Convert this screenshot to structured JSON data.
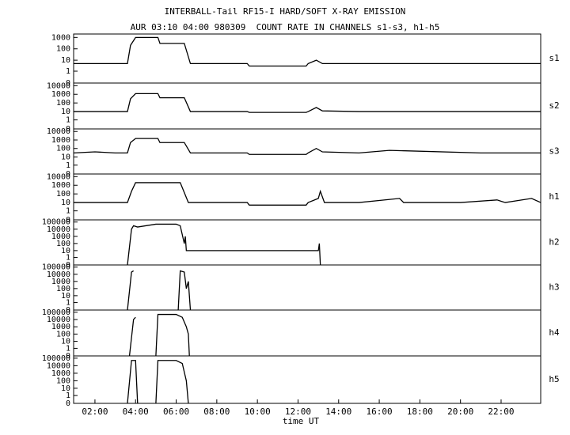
{
  "title": "INTERBALL-Tail RF15-I HARD/SOFT X-RAY EMISSION",
  "subtitle": "AUR 03:10 04:00 980309  COUNT RATE IN CHANNELS s1-s3, h1-h5",
  "xlabel": "time UT",
  "chart_data": [
    {
      "type": "line",
      "ylabel": "s1",
      "color": "#000000",
      "xlim": [
        0.95,
        23.95
      ],
      "ylim": [
        0,
        2000
      ],
      "yticks": [
        1000,
        100,
        10,
        1,
        0
      ],
      "x": [
        0.95,
        2,
        3,
        3.6,
        3.75,
        4.0,
        5.1,
        5.2,
        6.4,
        6.7,
        8,
        9.5,
        9.6,
        12.4,
        12.5,
        12.9,
        13.2,
        15,
        18,
        21,
        23.95
      ],
      "values": [
        5,
        5,
        5,
        5,
        200,
        1000,
        1000,
        300,
        300,
        5,
        5,
        5,
        3,
        3,
        5,
        10,
        5,
        5,
        5,
        5,
        5
      ]
    },
    {
      "type": "line",
      "ylabel": "s2",
      "color": "#000000",
      "xlim": [
        0.95,
        23.95
      ],
      "ylim": [
        0,
        20000
      ],
      "yticks": [
        10000,
        1000,
        100,
        10,
        1,
        0
      ],
      "x": [
        0.95,
        2,
        3,
        3.6,
        3.75,
        4.0,
        5.1,
        5.2,
        6.4,
        6.7,
        8,
        9.5,
        9.6,
        12.4,
        12.5,
        12.9,
        13.2,
        15,
        18,
        21,
        23.95
      ],
      "values": [
        10,
        10,
        10,
        10,
        300,
        1200,
        1200,
        400,
        400,
        10,
        10,
        10,
        8,
        8,
        10,
        30,
        12,
        10,
        10,
        10,
        10
      ]
    },
    {
      "type": "line",
      "ylabel": "s3",
      "color": "#000000",
      "xlim": [
        0.95,
        23.95
      ],
      "ylim": [
        0,
        20000
      ],
      "yticks": [
        10000,
        1000,
        100,
        10,
        1,
        0
      ],
      "x": [
        0.95,
        2,
        3,
        3.6,
        3.75,
        4.0,
        5.1,
        5.2,
        6.4,
        6.7,
        8,
        9.5,
        9.6,
        12.4,
        12.5,
        12.9,
        13.2,
        15,
        16.5,
        21,
        23.95
      ],
      "values": [
        30,
        40,
        30,
        30,
        500,
        1500,
        1500,
        500,
        500,
        30,
        30,
        30,
        20,
        20,
        30,
        100,
        40,
        30,
        60,
        30,
        30
      ]
    },
    {
      "type": "line",
      "ylabel": "h1",
      "color": "#000000",
      "xlim": [
        0.95,
        23.95
      ],
      "ylim": [
        0,
        20000
      ],
      "yticks": [
        10000,
        1000,
        100,
        10,
        1,
        0
      ],
      "x": [
        0.95,
        2,
        3,
        3.6,
        3.8,
        4.0,
        5.5,
        6.2,
        6.6,
        8,
        9.5,
        9.6,
        12.4,
        12.5,
        13.0,
        13.1,
        13.3,
        15,
        17,
        17.2,
        20,
        21.8,
        22.2,
        23.5,
        23.95
      ],
      "values": [
        10,
        10,
        10,
        10,
        200,
        2000,
        2000,
        2000,
        10,
        10,
        10,
        5,
        5,
        10,
        30,
        200,
        10,
        10,
        30,
        10,
        10,
        20,
        10,
        30,
        10
      ]
    },
    {
      "type": "line",
      "ylabel": "h2",
      "color": "#000000",
      "xlim": [
        0.95,
        23.95
      ],
      "ylim": [
        0,
        200000
      ],
      "yticks": [
        100000,
        10000,
        1000,
        100,
        10,
        1,
        0
      ],
      "x": [
        3.6,
        3.8,
        3.9,
        4.1,
        5.0,
        6.0,
        6.2,
        6.4,
        6.45,
        6.5,
        6.6,
        13.0,
        13.05,
        13.1
      ],
      "values": [
        0,
        10000,
        30000,
        20000,
        50000,
        50000,
        30000,
        100,
        1000,
        10,
        10,
        10,
        100,
        0
      ]
    },
    {
      "type": "line",
      "ylabel": "h3",
      "color": "#000000",
      "xlim": [
        0.95,
        23.95
      ],
      "ylim": [
        0,
        200000
      ],
      "yticks": [
        100000,
        10000,
        1000,
        100,
        10,
        1,
        0
      ],
      "x": [
        3.6,
        3.8,
        3.9,
        4.0,
        6.1,
        6.2,
        6.4,
        6.5,
        6.6,
        6.7
      ],
      "values": [
        0,
        20000,
        30000,
        null,
        0,
        30000,
        20000,
        100,
        1000,
        0
      ]
    },
    {
      "type": "line",
      "ylabel": "h4",
      "color": "#000000",
      "xlim": [
        0.95,
        23.95
      ],
      "ylim": [
        0,
        200000
      ],
      "yticks": [
        100000,
        10000,
        1000,
        100,
        10,
        1,
        0
      ],
      "x": [
        3.7,
        3.9,
        4.0,
        4.05,
        5.0,
        5.1,
        6.0,
        6.3,
        6.5,
        6.6,
        6.65
      ],
      "values": [
        0,
        10000,
        20000,
        null,
        0,
        50000,
        50000,
        20000,
        1000,
        100,
        0
      ]
    },
    {
      "type": "line",
      "ylabel": "h5",
      "color": "#000000",
      "xlim": [
        0.95,
        23.95
      ],
      "ylim": [
        0,
        200000
      ],
      "yticks": [
        100000,
        10000,
        1000,
        100,
        10,
        1,
        0
      ],
      "x": [
        3.6,
        3.8,
        4.0,
        4.1,
        4.2,
        5.0,
        5.1,
        6.0,
        6.3,
        6.5,
        6.6
      ],
      "values": [
        0,
        50000,
        50000,
        0,
        null,
        0,
        50000,
        50000,
        20000,
        100,
        0
      ],
      "xticks": [
        {
          "value": 2,
          "label": "02:00"
        },
        {
          "value": 4,
          "label": "04:00"
        },
        {
          "value": 6,
          "label": "06:00"
        },
        {
          "value": 8,
          "label": "08:00"
        },
        {
          "value": 10,
          "label": "10:00"
        },
        {
          "value": 12,
          "label": "12:00"
        },
        {
          "value": 14,
          "label": "14:00"
        },
        {
          "value": 16,
          "label": "16:00"
        },
        {
          "value": 18,
          "label": "18:00"
        },
        {
          "value": 20,
          "label": "20:00"
        },
        {
          "value": 22,
          "label": "22:00"
        }
      ]
    }
  ]
}
